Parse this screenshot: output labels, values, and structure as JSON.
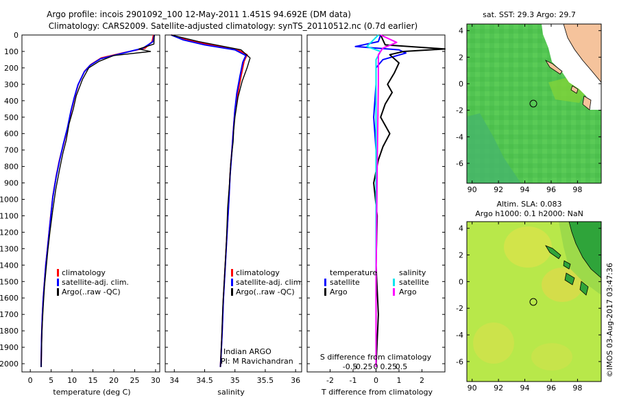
{
  "header": {
    "line1": "Argo profile: incois 2901092_100 12-May-2011 1.451S 94.692E (DM data)",
    "line2": "Climatology: CARS2009. Satellite-adjusted climatology: synTS_20110512.nc (0.7d earlier)"
  },
  "colors": {
    "climatology": "#ff0000",
    "satellite": "#0000ff",
    "argo": "#000000",
    "s_satellite": "#00e5ee",
    "s_argo": "#ff00ff",
    "land": "#f5c39c"
  },
  "depth_ticks": [
    "0",
    "100",
    "200",
    "300",
    "400",
    "500",
    "600",
    "700",
    "800",
    "900",
    "1000",
    "1100",
    "1200",
    "1300",
    "1400",
    "1500",
    "1600",
    "1700",
    "1800",
    "1900",
    "2000"
  ],
  "temp_panel": {
    "xlabel": "temperature (deg C)",
    "xticks": [
      "0",
      "5",
      "10",
      "15",
      "20",
      "25",
      "30"
    ],
    "legend": [
      "climatology",
      "satellite-adj. clim.",
      "Argo(..raw -QC)"
    ]
  },
  "sal_panel": {
    "xlabel": "salinity",
    "xticks": [
      "34",
      "34.5",
      "35",
      "35.5",
      "36"
    ],
    "legend": [
      "climatology",
      "satellite-adj. clim.",
      "Argo(..raw -QC)"
    ],
    "note1": "Indian ARGO",
    "note2": "PI: M Ravichandran"
  },
  "diff_panel": {
    "xlabel": "T difference from climatology",
    "xlabel_top": "S difference from climatology",
    "xticks_bottom": [
      "-2",
      "-1",
      "0",
      "1",
      "2"
    ],
    "xticks_top": [
      "-0.5",
      "-0.25",
      "0",
      "0.25",
      "0.5"
    ],
    "legend_t_title": "temperature",
    "legend_s_title": "salinity",
    "legend_t": [
      "satellite",
      "Argo"
    ],
    "legend_s": [
      "satellite",
      "Argo"
    ]
  },
  "sst_map": {
    "title": "sat. SST: 29.3 Argo: 29.7",
    "xticks": [
      "90",
      "92",
      "94",
      "96",
      "98"
    ],
    "yticks": [
      "4",
      "2",
      "0",
      "-2",
      "-4",
      "-6"
    ]
  },
  "sla_map": {
    "title1": "Altim. SLA: 0.083",
    "title2": "Argo h1000: 0.1 h2000: NaN",
    "xticks": [
      "90",
      "92",
      "94",
      "96",
      "98"
    ],
    "yticks": [
      "4",
      "2",
      "0",
      "-2",
      "-4",
      "-6"
    ]
  },
  "credit": "©IMOS 03-Aug-2017 03:47:36",
  "chart_data": [
    {
      "type": "line",
      "xlabel": "temperature (deg C)",
      "ylabel": "",
      "xlim": [
        -2,
        31
      ],
      "ylim": [
        2050,
        0
      ],
      "series": [
        {
          "name": "climatology",
          "x": [
            29.5,
            29.2,
            27.5,
            22,
            17,
            14.5,
            13,
            11.5,
            10.6,
            9.8,
            9,
            8,
            7,
            6.2,
            5.4,
            4.9,
            4.5,
            4.1,
            3.7,
            3.4,
            3.1,
            2.9,
            2.7,
            2.6
          ],
          "y": [
            0,
            40,
            80,
            110,
            140,
            180,
            220,
            300,
            380,
            460,
            560,
            660,
            760,
            860,
            980,
            1100,
            1200,
            1300,
            1400,
            1500,
            1600,
            1700,
            1850,
            2020
          ]
        },
        {
          "name": "satellite-adj. clim.",
          "x": [
            29.7,
            29.4,
            27,
            21.5,
            16.8,
            14.3,
            12.9,
            11.4,
            10.5,
            9.7,
            8.9,
            7.9,
            7,
            6.2,
            5.4,
            4.9,
            4.5,
            4.1,
            3.7,
            3.4,
            3.1,
            2.9,
            2.7,
            2.6
          ],
          "y": [
            0,
            40,
            80,
            115,
            145,
            185,
            225,
            305,
            385,
            465,
            565,
            665,
            765,
            865,
            985,
            1105,
            1205,
            1305,
            1405,
            1505,
            1605,
            1705,
            1855,
            2020
          ]
        },
        {
          "name": "Argo(..raw -QC)",
          "x": [
            29.7,
            29.6,
            26,
            28.8,
            20,
            16.5,
            14,
            12.5,
            11,
            10.3,
            9.3,
            8.6,
            7.8,
            7,
            6.1,
            5.3,
            4.7,
            4.2,
            3.8,
            3.4,
            3.1,
            2.8,
            2.6
          ],
          "y": [
            0,
            55,
            85,
            100,
            125,
            160,
            200,
            270,
            370,
            450,
            540,
            640,
            720,
            820,
            940,
            1080,
            1200,
            1310,
            1420,
            1530,
            1650,
            1800,
            2020
          ]
        }
      ]
    },
    {
      "type": "line",
      "xlabel": "salinity",
      "ylabel": "",
      "xlim": [
        33.85,
        36.1
      ],
      "ylim": [
        2050,
        0
      ],
      "series": [
        {
          "name": "climatology",
          "x": [
            33.95,
            34.2,
            34.6,
            35.05,
            35.2,
            35.15,
            35.1,
            35.05,
            35.0,
            34.98,
            34.95,
            34.92,
            34.9,
            34.87,
            34.84,
            34.81,
            34.79,
            34.77,
            34.76
          ],
          "y": [
            0,
            30,
            60,
            90,
            120,
            160,
            250,
            350,
            450,
            550,
            700,
            850,
            1000,
            1200,
            1400,
            1600,
            1800,
            1950,
            2020
          ]
        },
        {
          "name": "satellite-adj. clim.",
          "x": [
            33.95,
            34.15,
            34.5,
            35.0,
            35.18,
            35.13,
            35.08,
            35.03,
            35.0,
            34.98,
            34.95,
            34.92,
            34.9,
            34.87,
            34.84,
            34.81,
            34.79,
            34.77,
            34.76
          ],
          "y": [
            0,
            30,
            60,
            90,
            125,
            165,
            255,
            355,
            455,
            555,
            705,
            855,
            1005,
            1205,
            1405,
            1605,
            1805,
            1955,
            2020
          ]
        },
        {
          "name": "Argo(..raw -QC)",
          "x": [
            33.95,
            34.4,
            35.1,
            35.25,
            35.2,
            35.12,
            35.05,
            35.0,
            34.98,
            34.97,
            34.93,
            34.91,
            34.88,
            34.86,
            34.83,
            34.8,
            34.78,
            34.76
          ],
          "y": [
            0,
            40,
            90,
            140,
            200,
            280,
            380,
            500,
            580,
            650,
            780,
            900,
            1050,
            1250,
            1450,
            1650,
            1850,
            2020
          ]
        }
      ]
    },
    {
      "type": "line",
      "xlabel": "T difference from climatology",
      "ylabel": "",
      "xlim": [
        -3,
        3
      ],
      "ylim": [
        2050,
        0
      ],
      "series": [
        {
          "name": "temperature satellite",
          "x": [
            0.2,
            0.1,
            -0.9,
            1.0,
            1.3,
            0.3,
            0,
            0,
            -0.1,
            0,
            0,
            0,
            0,
            0
          ],
          "y": [
            0,
            40,
            70,
            90,
            110,
            150,
            200,
            300,
            500,
            700,
            1000,
            1400,
            1800,
            2020
          ]
        },
        {
          "name": "temperature Argo",
          "x": [
            0.2,
            0.4,
            3.0,
            1.2,
            0.6,
            1.0,
            0.8,
            0.5,
            0.7,
            0.4,
            0.2,
            0.6,
            0.3,
            0.1,
            -0.1,
            0.05,
            0,
            0.1,
            0
          ],
          "y": [
            0,
            60,
            85,
            100,
            120,
            170,
            230,
            300,
            350,
            420,
            500,
            600,
            680,
            760,
            900,
            1100,
            1400,
            1700,
            2020
          ]
        },
        {
          "name": "salinity satellite",
          "x": [
            0.1,
            -0.4,
            0.2,
            0,
            0,
            0,
            0
          ],
          "y": [
            0,
            70,
            100,
            150,
            400,
            1000,
            2020
          ]
        },
        {
          "name": "salinity Argo",
          "x": [
            0.2,
            0.9,
            0.3,
            0.1,
            0.1,
            0.05,
            0,
            0
          ],
          "y": [
            0,
            45,
            80,
            120,
            300,
            800,
            1500,
            2020
          ]
        }
      ]
    }
  ]
}
